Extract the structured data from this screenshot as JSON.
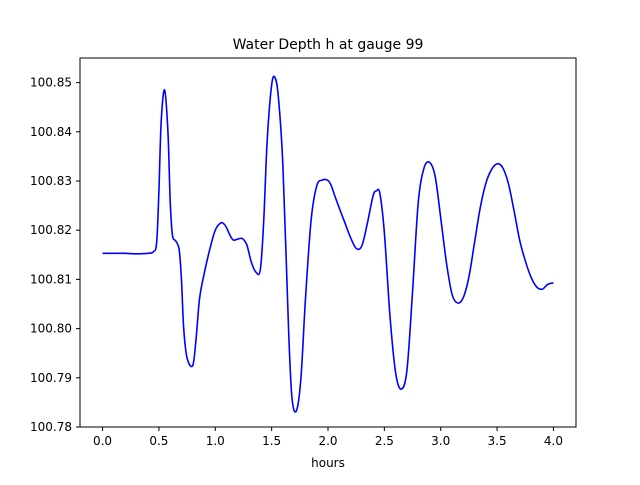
{
  "chart_data": {
    "type": "line",
    "title": "Water Depth h at gauge 99",
    "xlabel": "hours",
    "ylabel": "",
    "xlim": [
      -0.2,
      4.2
    ],
    "ylim": [
      100.78,
      100.855
    ],
    "x_ticks": [
      0.0,
      0.5,
      1.0,
      1.5,
      2.0,
      2.5,
      3.0,
      3.5,
      4.0
    ],
    "x_tick_labels": [
      "0.0",
      "0.5",
      "1.0",
      "1.5",
      "2.0",
      "2.5",
      "3.0",
      "3.5",
      "4.0"
    ],
    "y_ticks": [
      100.78,
      100.79,
      100.8,
      100.81,
      100.82,
      100.83,
      100.84,
      100.85
    ],
    "y_tick_labels": [
      "100.78",
      "100.79",
      "100.80",
      "100.81",
      "100.82",
      "100.83",
      "100.84",
      "100.85"
    ],
    "grid": false,
    "series": [
      {
        "color": "#0000ff",
        "x": [
          0.0,
          0.1,
          0.2,
          0.3,
          0.4,
          0.45,
          0.48,
          0.5,
          0.52,
          0.55,
          0.58,
          0.6,
          0.62,
          0.65,
          0.68,
          0.7,
          0.72,
          0.75,
          0.8,
          0.83,
          0.86,
          0.9,
          0.95,
          1.0,
          1.05,
          1.08,
          1.1,
          1.13,
          1.16,
          1.2,
          1.24,
          1.28,
          1.32,
          1.36,
          1.4,
          1.43,
          1.46,
          1.5,
          1.53,
          1.56,
          1.6,
          1.65,
          1.68,
          1.72,
          1.76,
          1.8,
          1.85,
          1.9,
          1.95,
          2.0,
          2.03,
          2.06,
          2.1,
          2.15,
          2.2,
          2.25,
          2.3,
          2.35,
          2.4,
          2.43,
          2.46,
          2.5,
          2.55,
          2.6,
          2.65,
          2.7,
          2.75,
          2.8,
          2.85,
          2.9,
          2.95,
          3.0,
          3.05,
          3.1,
          3.15,
          3.2,
          3.25,
          3.3,
          3.35,
          3.4,
          3.45,
          3.5,
          3.55,
          3.6,
          3.65,
          3.7,
          3.75,
          3.8,
          3.85,
          3.9,
          3.95,
          4.0
        ],
        "y": [
          100.8153,
          100.8153,
          100.8153,
          100.8152,
          100.8153,
          100.8156,
          100.8175,
          100.828,
          100.842,
          100.8485,
          100.84,
          100.826,
          100.819,
          100.8178,
          100.816,
          100.81,
          100.8,
          100.794,
          100.7925,
          100.798,
          100.806,
          100.811,
          100.816,
          100.82,
          100.8215,
          100.8212,
          100.8205,
          100.819,
          100.818,
          100.8182,
          100.8183,
          100.817,
          100.8135,
          100.8115,
          100.812,
          100.822,
          100.838,
          100.8495,
          100.851,
          100.847,
          100.833,
          100.8,
          100.786,
          100.7833,
          100.79,
          100.806,
          100.822,
          100.829,
          100.8302,
          100.8301,
          100.829,
          100.827,
          100.8245,
          100.8215,
          100.8185,
          100.8163,
          100.8168,
          100.8215,
          100.827,
          100.828,
          100.8275,
          100.8195,
          100.8025,
          100.791,
          100.7877,
          100.7915,
          100.8075,
          100.8255,
          100.8325,
          100.8338,
          100.831,
          100.8225,
          100.8135,
          100.807,
          100.8052,
          100.8063,
          100.8105,
          100.8175,
          100.8245,
          100.8295,
          100.8323,
          100.8335,
          100.8327,
          100.8295,
          100.824,
          100.818,
          100.8138,
          100.8105,
          100.8085,
          100.808,
          100.809,
          100.8093
        ]
      }
    ]
  }
}
